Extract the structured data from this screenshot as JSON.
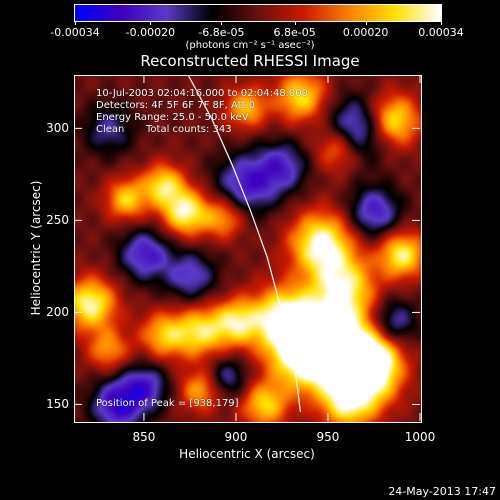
{
  "colorbar": {
    "ticks": [
      "-0.00034",
      "-0.00020",
      "-6.8e-05",
      "6.8e-05",
      "0.00020",
      "0.00034"
    ],
    "tick_values": [
      -0.00034,
      -0.0002,
      -6.8e-05,
      6.8e-05,
      0.0002,
      0.00034
    ],
    "range": [
      -0.00034,
      0.00034
    ],
    "units": "(photons cm⁻² s⁻¹ asec⁻²)"
  },
  "chart_data": {
    "type": "heatmap",
    "title": "Reconstructed RHESSI Image",
    "xlabel": "Heliocentric X (arcsec)",
    "ylabel": "Heliocentric Y (arcsec)",
    "xlim": [
      812,
      1000
    ],
    "ylim": [
      141,
      329
    ],
    "x_ticks": [
      "850",
      "900",
      "950",
      "1000"
    ],
    "x_tick_values": [
      850,
      900,
      950,
      1000
    ],
    "y_ticks": [
      "150",
      "200",
      "250",
      "300"
    ],
    "y_tick_values": [
      150,
      200,
      250,
      300
    ],
    "colormap": [
      "#0000ff",
      "#3f00bf",
      "#5a3ac8",
      "#000000",
      "#6a1010",
      "#cc1a00",
      "#ff8000",
      "#ffe000",
      "#ffffff"
    ],
    "peak": [
      938,
      179
    ],
    "limb_curve": {
      "x": [
        874,
        887,
        898,
        908,
        917,
        925,
        932,
        935
      ],
      "y": [
        329,
        305,
        280,
        255,
        230,
        200,
        170,
        146
      ]
    },
    "blobs": [
      {
        "x": 938,
        "y": 179,
        "a": 1.0,
        "s": 14
      },
      {
        "x": 955,
        "y": 185,
        "a": 0.85,
        "s": 16
      },
      {
        "x": 925,
        "y": 198,
        "a": 0.8,
        "s": 12
      },
      {
        "x": 970,
        "y": 165,
        "a": 0.75,
        "s": 13
      },
      {
        "x": 946,
        "y": 238,
        "a": 0.9,
        "s": 12
      },
      {
        "x": 958,
        "y": 215,
        "a": 0.7,
        "s": 12
      },
      {
        "x": 990,
        "y": 232,
        "a": 0.8,
        "s": 9
      },
      {
        "x": 985,
        "y": 305,
        "a": 0.8,
        "s": 10
      },
      {
        "x": 975,
        "y": 175,
        "a": 0.6,
        "s": 10
      },
      {
        "x": 960,
        "y": 150,
        "a": 0.6,
        "s": 10
      },
      {
        "x": 915,
        "y": 150,
        "a": 0.65,
        "s": 9
      },
      {
        "x": 880,
        "y": 190,
        "a": 0.7,
        "s": 10
      },
      {
        "x": 900,
        "y": 195,
        "a": 0.7,
        "s": 9
      },
      {
        "x": 860,
        "y": 188,
        "a": 0.6,
        "s": 9
      },
      {
        "x": 820,
        "y": 205,
        "a": 0.85,
        "s": 10
      },
      {
        "x": 830,
        "y": 180,
        "a": 0.5,
        "s": 8
      },
      {
        "x": 872,
        "y": 255,
        "a": 0.85,
        "s": 9
      },
      {
        "x": 860,
        "y": 270,
        "a": 0.7,
        "s": 8
      },
      {
        "x": 840,
        "y": 262,
        "a": 0.65,
        "s": 8
      },
      {
        "x": 935,
        "y": 318,
        "a": 0.7,
        "s": 10
      },
      {
        "x": 955,
        "y": 290,
        "a": 0.6,
        "s": 9
      },
      {
        "x": 905,
        "y": 312,
        "a": 0.6,
        "s": 8
      },
      {
        "x": 893,
        "y": 252,
        "a": 0.55,
        "s": 8
      },
      {
        "x": 880,
        "y": 158,
        "a": 0.55,
        "s": 8
      },
      {
        "x": 850,
        "y": 232,
        "a": -0.6,
        "s": 10
      },
      {
        "x": 835,
        "y": 150,
        "a": -0.7,
        "s": 10
      },
      {
        "x": 905,
        "y": 270,
        "a": -0.6,
        "s": 12
      },
      {
        "x": 965,
        "y": 300,
        "a": -0.7,
        "s": 12
      },
      {
        "x": 975,
        "y": 255,
        "a": -0.6,
        "s": 10
      },
      {
        "x": 875,
        "y": 220,
        "a": -0.5,
        "s": 10
      },
      {
        "x": 850,
        "y": 160,
        "a": -0.55,
        "s": 9
      },
      {
        "x": 985,
        "y": 195,
        "a": -0.55,
        "s": 9
      },
      {
        "x": 925,
        "y": 280,
        "a": -0.5,
        "s": 10
      },
      {
        "x": 830,
        "y": 300,
        "a": -0.4,
        "s": 10
      },
      {
        "x": 895,
        "y": 165,
        "a": -0.45,
        "s": 8
      }
    ]
  },
  "info": {
    "time_range": "10-Jul-2003 02:04:16.000 to 02:04:48.000",
    "detectors": "Detectors: 4F 5F 6F 7F 8F, Att 0",
    "energy_range": "Energy Range: 25.0 - 50.0 keV",
    "method": "Clean",
    "total_counts": "Total counts: 343"
  },
  "peak_label": "Position of Peak = [938,179]",
  "footer": {
    "timestamp": "24-May-2013 17:47"
  }
}
